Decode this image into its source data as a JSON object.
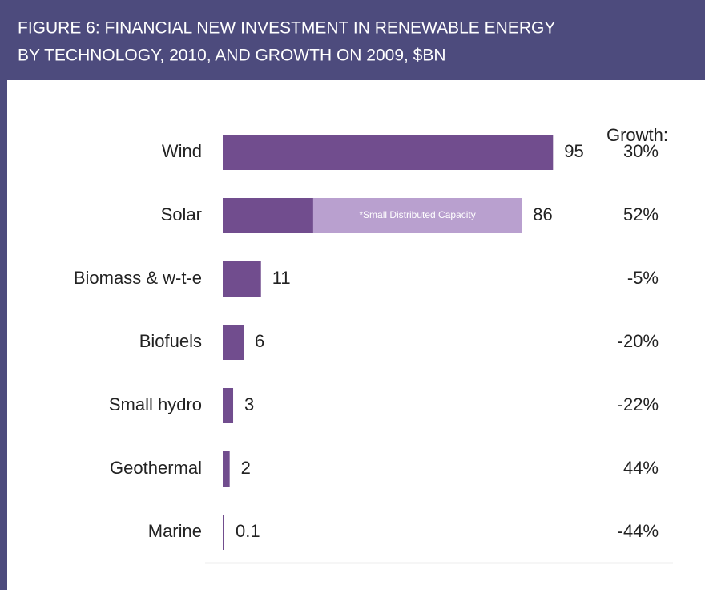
{
  "chart_data": {
    "type": "bar",
    "orientation": "horizontal",
    "title": [
      "FIGURE 6: FINANCIAL NEW INVESTMENT IN RENEWABLE ENERGY",
      "BY TECHNOLOGY, 2010, AND GROWTH ON 2009, $BN"
    ],
    "categories": [
      "Wind",
      "Solar",
      "Biomass & w-t-e",
      "Biofuels",
      "Small hydro",
      "Geothermal",
      "Marine"
    ],
    "values": [
      95,
      86,
      11,
      6,
      3,
      2,
      0.1
    ],
    "color": "#714d8e",
    "segment": {
      "category_index": 1,
      "label": "*Small Distributed Capacity",
      "value": 60,
      "color": "#b9a0cf"
    },
    "growth": {
      "label": "Growth:",
      "values": [
        30,
        52,
        -5,
        -20,
        -22,
        44,
        -44
      ],
      "value_labels": [
        "30%",
        "52%",
        "-5%",
        "-20%",
        "-22%",
        "44%",
        "-44%"
      ]
    },
    "xlim": [
      0,
      100
    ]
  }
}
